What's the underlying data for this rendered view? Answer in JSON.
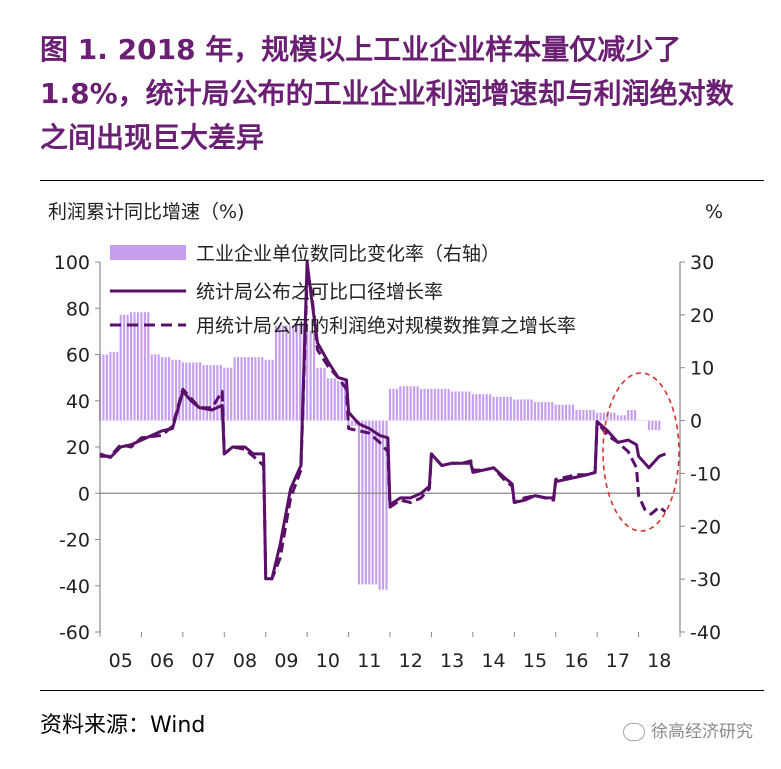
{
  "title": "图 1. 2018 年，规模以上工业企业样本量仅减少了 1.8%，统计局公布的工业企业利润增速却与利润绝对数之间出现巨大差异",
  "source": "资料来源：Wind",
  "watermark": "徐高经济研究",
  "chart_data": {
    "type": "bar+line",
    "ylabel_left": "利润累计同比增速（%)",
    "ylabel_right": "%",
    "ylim_left": [
      -60,
      100
    ],
    "yticks_left": [
      100,
      80,
      60,
      40,
      20,
      0,
      -20,
      -40,
      -60
    ],
    "ylim_right": [
      -40,
      30
    ],
    "yticks_right": [
      30,
      20,
      10,
      0,
      -10,
      -20,
      -30,
      -40
    ],
    "xlim": [
      2005,
      2019
    ],
    "xticks": [
      "05",
      "06",
      "07",
      "08",
      "09",
      "10",
      "11",
      "12",
      "13",
      "14",
      "15",
      "16",
      "17",
      "18"
    ],
    "legend_position": "top",
    "colors": {
      "bar": "#c59ef0",
      "line": "#5a1069",
      "highlight": "#d9322e",
      "axis": "#888888"
    },
    "series": [
      {
        "name": "工业企业单位数同比变化率（右轴）",
        "type": "bar",
        "axis": "right",
        "values": [
          [
            2005.0,
            12.5
          ],
          [
            2005.25,
            13
          ],
          [
            2005.5,
            20
          ],
          [
            2005.75,
            20.5
          ],
          [
            2006.0,
            20.5
          ],
          [
            2006.25,
            12.5
          ],
          [
            2006.5,
            12
          ],
          [
            2006.75,
            11.5
          ],
          [
            2007.0,
            11
          ],
          [
            2007.5,
            10.5
          ],
          [
            2008.0,
            10
          ],
          [
            2008.25,
            12
          ],
          [
            2008.75,
            12
          ],
          [
            2009.0,
            11.5
          ],
          [
            2009.25,
            18
          ],
          [
            2009.75,
            18.5
          ],
          [
            2010.0,
            17
          ],
          [
            2010.25,
            10
          ],
          [
            2010.5,
            8
          ],
          [
            2010.75,
            7.5
          ],
          [
            2011.0,
            -1
          ],
          [
            2011.25,
            -31
          ],
          [
            2011.75,
            -32
          ],
          [
            2011.95,
            -31
          ],
          [
            2012.0,
            6
          ],
          [
            2012.25,
            6.5
          ],
          [
            2012.75,
            6
          ],
          [
            2013.0,
            6
          ],
          [
            2013.5,
            5.5
          ],
          [
            2014.0,
            5
          ],
          [
            2014.5,
            4.5
          ],
          [
            2015.0,
            4
          ],
          [
            2015.5,
            3.5
          ],
          [
            2016.0,
            3
          ],
          [
            2016.5,
            2
          ],
          [
            2017.0,
            1.5
          ],
          [
            2017.5,
            1
          ],
          [
            2017.75,
            2
          ],
          [
            2018.0,
            0
          ],
          [
            2018.25,
            -1.8
          ],
          [
            2018.5,
            -1.8
          ]
        ]
      },
      {
        "name": "统计局公布之可比口径增长率",
        "type": "line",
        "style": "solid",
        "axis": "left",
        "values": [
          [
            2005.0,
            17
          ],
          [
            2005.25,
            15.5
          ],
          [
            2005.5,
            20
          ],
          [
            2005.75,
            21
          ],
          [
            2006.0,
            23
          ],
          [
            2006.5,
            27
          ],
          [
            2006.75,
            28
          ],
          [
            2007.0,
            44
          ],
          [
            2007.2,
            40
          ],
          [
            2007.4,
            37
          ],
          [
            2007.7,
            36
          ],
          [
            2007.95,
            38
          ],
          [
            2008.0,
            17
          ],
          [
            2008.2,
            20
          ],
          [
            2008.5,
            20
          ],
          [
            2008.7,
            17
          ],
          [
            2008.95,
            17
          ],
          [
            2009.0,
            -37
          ],
          [
            2009.15,
            -37
          ],
          [
            2009.35,
            -22
          ],
          [
            2009.6,
            2
          ],
          [
            2009.85,
            12
          ],
          [
            2010.0,
            100
          ],
          [
            2010.1,
            85
          ],
          [
            2010.25,
            65
          ],
          [
            2010.5,
            57
          ],
          [
            2010.75,
            50
          ],
          [
            2010.95,
            49
          ],
          [
            2011.0,
            35
          ],
          [
            2011.25,
            30
          ],
          [
            2011.5,
            28
          ],
          [
            2011.75,
            25
          ],
          [
            2011.95,
            24
          ],
          [
            2012.0,
            -5
          ],
          [
            2012.25,
            -2
          ],
          [
            2012.5,
            -2
          ],
          [
            2012.75,
            0
          ],
          [
            2012.95,
            3
          ],
          [
            2013.0,
            17
          ],
          [
            2013.25,
            12
          ],
          [
            2013.5,
            13
          ],
          [
            2013.75,
            13
          ],
          [
            2013.95,
            13
          ],
          [
            2014.0,
            9
          ],
          [
            2014.25,
            10
          ],
          [
            2014.5,
            11
          ],
          [
            2014.75,
            7
          ],
          [
            2014.95,
            4
          ],
          [
            2015.0,
            -4
          ],
          [
            2015.25,
            -3
          ],
          [
            2015.5,
            -1
          ],
          [
            2015.75,
            -2
          ],
          [
            2015.95,
            -2
          ],
          [
            2016.0,
            5
          ],
          [
            2016.25,
            6
          ],
          [
            2016.5,
            7
          ],
          [
            2016.75,
            8
          ],
          [
            2016.95,
            9
          ],
          [
            2017.0,
            31
          ],
          [
            2017.25,
            27
          ],
          [
            2017.5,
            22
          ],
          [
            2017.75,
            23
          ],
          [
            2017.95,
            21
          ],
          [
            2018.0,
            16
          ],
          [
            2018.25,
            11
          ],
          [
            2018.5,
            16
          ],
          [
            2018.65,
            17
          ]
        ]
      },
      {
        "name": "用统计局公布的利润绝对规模数推算之增长率",
        "type": "line",
        "style": "dashed",
        "axis": "left",
        "values": [
          [
            2005.0,
            16
          ],
          [
            2005.25,
            16
          ],
          [
            2005.5,
            21
          ],
          [
            2005.75,
            20
          ],
          [
            2006.0,
            24
          ],
          [
            2006.5,
            25
          ],
          [
            2006.75,
            29
          ],
          [
            2007.0,
            45
          ],
          [
            2007.2,
            41
          ],
          [
            2007.4,
            37
          ],
          [
            2007.7,
            37
          ],
          [
            2007.95,
            44
          ],
          [
            2008.0,
            17
          ],
          [
            2008.2,
            20
          ],
          [
            2008.5,
            19
          ],
          [
            2008.7,
            16
          ],
          [
            2008.95,
            12
          ],
          [
            2009.0,
            -35
          ],
          [
            2009.15,
            -37
          ],
          [
            2009.35,
            -28
          ],
          [
            2009.6,
            -2
          ],
          [
            2009.85,
            10
          ],
          [
            2010.0,
            93
          ],
          [
            2010.1,
            88
          ],
          [
            2010.25,
            62
          ],
          [
            2010.5,
            55
          ],
          [
            2010.75,
            50
          ],
          [
            2010.95,
            45
          ],
          [
            2011.0,
            28
          ],
          [
            2011.25,
            27
          ],
          [
            2011.5,
            26
          ],
          [
            2011.75,
            22
          ],
          [
            2011.95,
            18
          ],
          [
            2012.0,
            -6
          ],
          [
            2012.25,
            -3
          ],
          [
            2012.5,
            -4
          ],
          [
            2012.75,
            -2
          ],
          [
            2012.95,
            2
          ],
          [
            2013.0,
            17
          ],
          [
            2013.25,
            12
          ],
          [
            2013.5,
            13
          ],
          [
            2013.75,
            13
          ],
          [
            2013.95,
            14
          ],
          [
            2014.0,
            10
          ],
          [
            2014.25,
            10
          ],
          [
            2014.5,
            11
          ],
          [
            2014.75,
            6
          ],
          [
            2014.95,
            3
          ],
          [
            2015.0,
            -4
          ],
          [
            2015.25,
            -2
          ],
          [
            2015.5,
            -1
          ],
          [
            2015.75,
            -2
          ],
          [
            2015.95,
            -3
          ],
          [
            2016.0,
            6
          ],
          [
            2016.25,
            7
          ],
          [
            2016.5,
            8
          ],
          [
            2016.75,
            8
          ],
          [
            2016.95,
            9
          ],
          [
            2017.0,
            31
          ],
          [
            2017.25,
            25
          ],
          [
            2017.5,
            22
          ],
          [
            2017.75,
            18
          ],
          [
            2017.95,
            11
          ],
          [
            2018.0,
            -1
          ],
          [
            2018.15,
            -7
          ],
          [
            2018.3,
            -9
          ],
          [
            2018.5,
            -6
          ],
          [
            2018.65,
            -8
          ]
        ]
      }
    ]
  }
}
